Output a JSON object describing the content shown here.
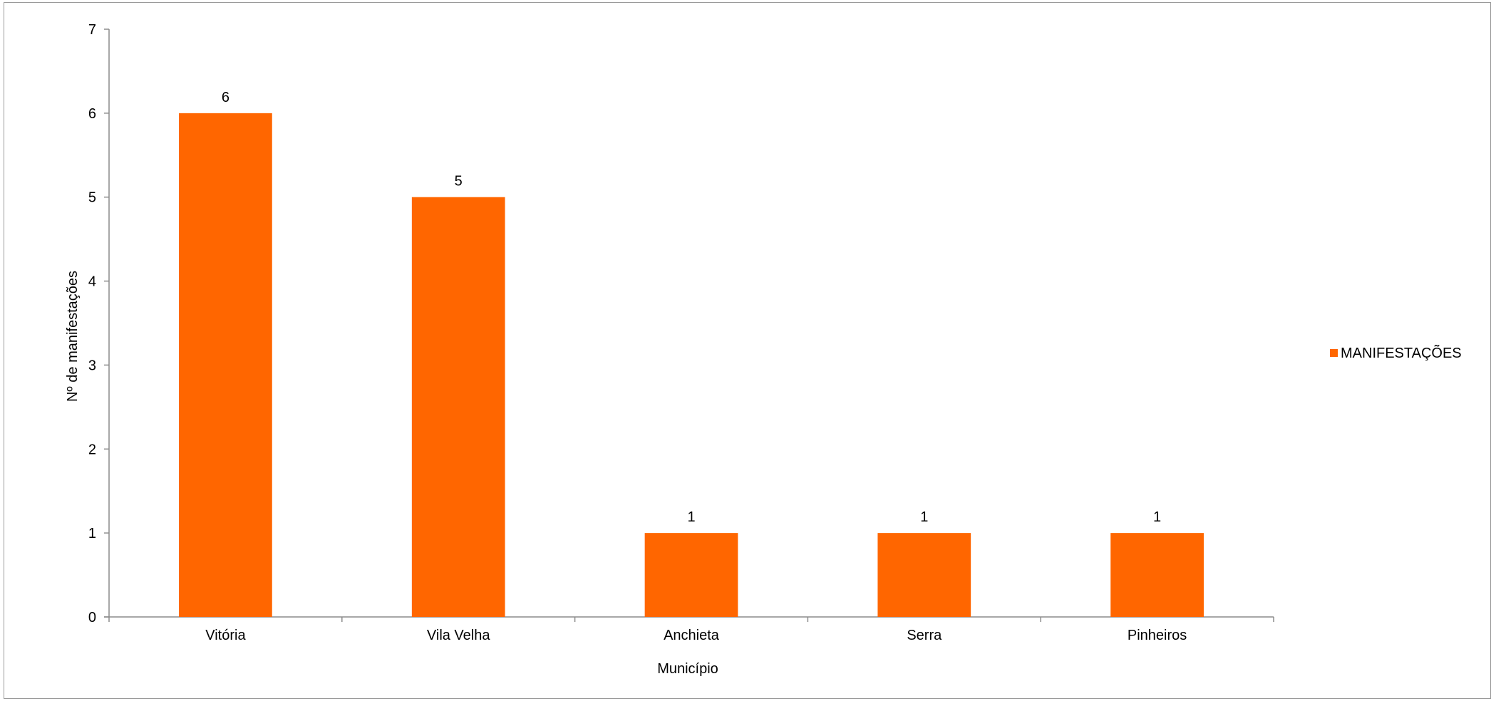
{
  "chart_data": {
    "type": "bar",
    "categories": [
      "Vitória",
      "Vila Velha",
      "Anchieta",
      "Serra",
      "Pinheiros"
    ],
    "series": [
      {
        "name": "MANIFESTAÇÕES",
        "values": [
          6,
          5,
          1,
          1,
          1
        ],
        "color": "#ff6600"
      }
    ],
    "xlabel": "Município",
    "ylabel": "Nº de manifestações",
    "ylim": [
      0,
      7
    ],
    "yticks": [
      0,
      1,
      2,
      3,
      4,
      5,
      6,
      7
    ],
    "grid": false,
    "legend_position": "right",
    "data_labels": true
  }
}
